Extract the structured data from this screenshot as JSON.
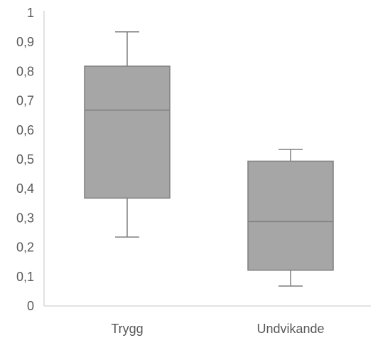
{
  "chart_data": {
    "type": "box",
    "y_ticks": [
      "0",
      "0,1",
      "0,2",
      "0,3",
      "0,4",
      "0,5",
      "0,6",
      "0,7",
      "0,8",
      "0,9",
      "1"
    ],
    "ylim": [
      0,
      1
    ],
    "categories": [
      "Trygg",
      "Undvikande"
    ],
    "boxes": [
      {
        "category": "Trygg",
        "min": 0.235,
        "q1": 0.368,
        "median": 0.668,
        "q3": 0.818,
        "max": 0.935
      },
      {
        "category": "Undvikande",
        "min": 0.068,
        "q1": 0.122,
        "median": 0.288,
        "q3": 0.494,
        "max": 0.534
      }
    ],
    "grid": false,
    "legend": "none",
    "colors": {
      "box_fill": "#a6a6a6",
      "box_stroke": "#7f7f7f",
      "axis": "#d9d9d9",
      "text": "#595959"
    }
  }
}
